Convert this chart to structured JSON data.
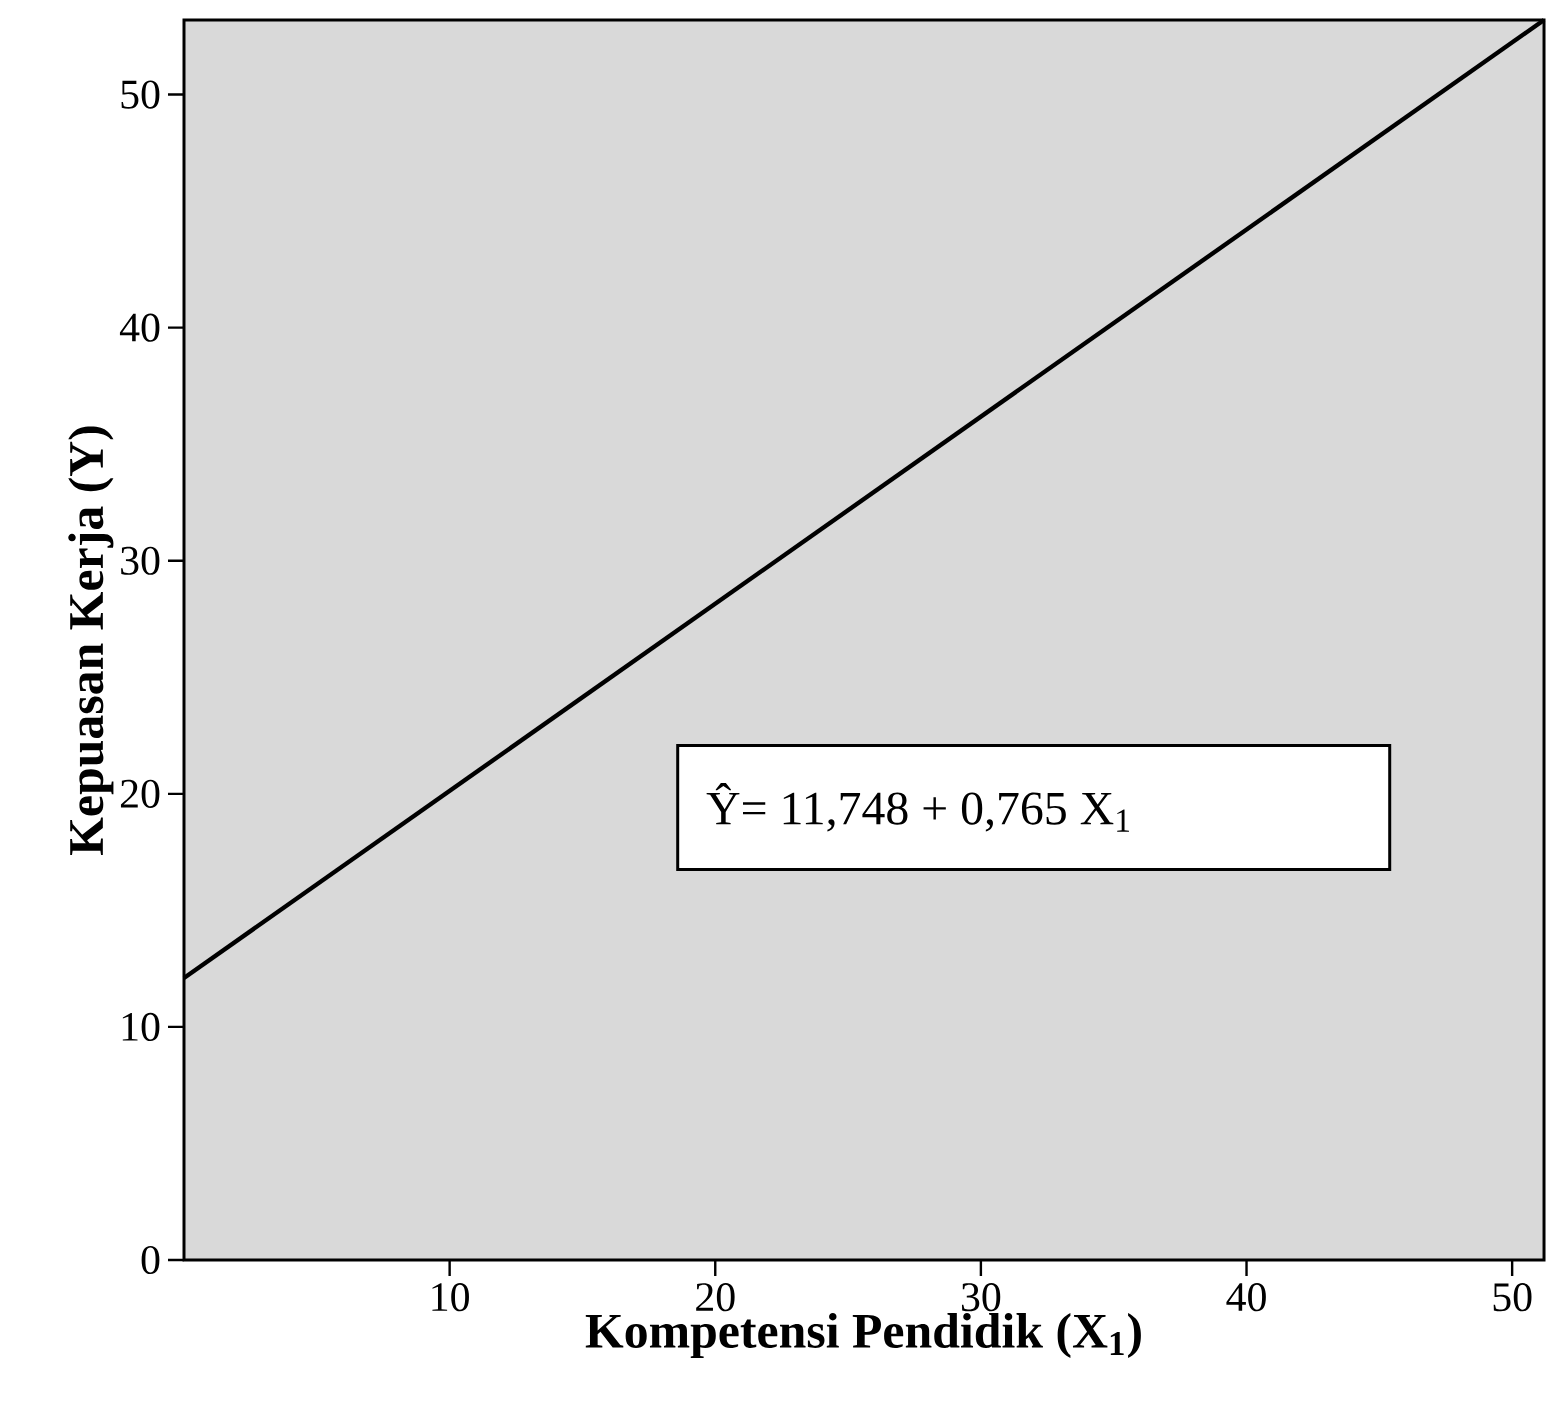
{
  "chart_data": {
    "type": "line",
    "xlabel": "Kompetensi Pendidik (X$_{1}$)",
    "ylabel": "Kepuasan Kerja (Y)",
    "annotations": [
      "Ŷ= 11,748 + 0,765 X$_{1}$"
    ],
    "x": [
      0,
      51.2
    ],
    "series": [
      {
        "color": "#000000",
        "values": [
          12.1,
          53.2
        ]
      }
    ],
    "xlim": [
      0,
      51.2
    ],
    "ylim": [
      0,
      53.2
    ],
    "xticks": [
      10,
      20,
      30,
      40,
      50
    ],
    "yticks": [
      0,
      10,
      20,
      30,
      40,
      50
    ],
    "grid": false,
    "marker": "none",
    "line_style": "solid"
  }
}
